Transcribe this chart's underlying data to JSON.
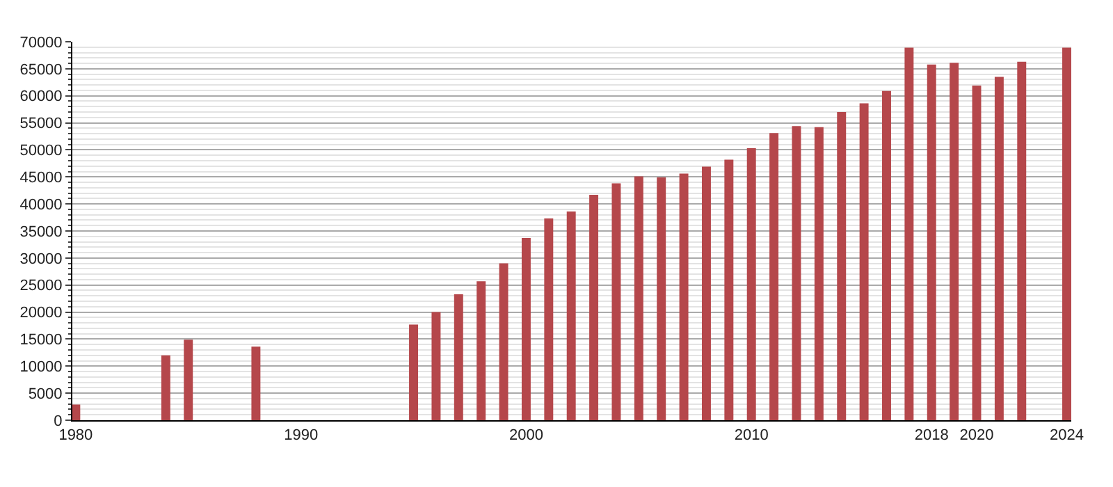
{
  "chart_data": {
    "type": "bar",
    "x": [
      1980,
      1984,
      1985,
      1988,
      1995,
      1996,
      1997,
      1998,
      1999,
      2000,
      2001,
      2002,
      2003,
      2004,
      2005,
      2006,
      2007,
      2008,
      2009,
      2010,
      2011,
      2012,
      2013,
      2014,
      2015,
      2016,
      2017,
      2018,
      2019,
      2020,
      2021,
      2022,
      2024
    ],
    "values": [
      2900,
      12000,
      14900,
      13600,
      17700,
      20000,
      23300,
      25700,
      29000,
      33700,
      37300,
      38600,
      41700,
      43800,
      45100,
      44900,
      45600,
      46900,
      48200,
      50300,
      53100,
      54400,
      54200,
      57000,
      58600,
      60900,
      68900,
      65800,
      66100,
      61900,
      63500,
      66300,
      68900
    ],
    "color": "#b5474b",
    "xlim": [
      1979.85,
      2024.2
    ],
    "xticks": [
      1980,
      1990,
      2000,
      2010,
      2018,
      2020,
      2024
    ],
    "ylim": [
      0,
      70000
    ],
    "yticks": [
      0,
      5000,
      10000,
      15000,
      20000,
      25000,
      30000,
      35000,
      40000,
      45000,
      50000,
      55000,
      60000,
      65000,
      70000
    ],
    "grid": "y"
  }
}
